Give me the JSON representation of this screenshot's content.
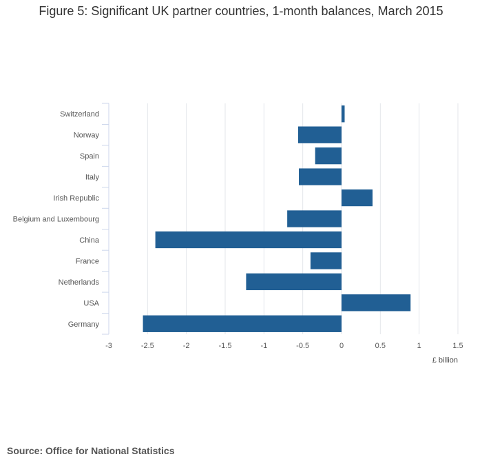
{
  "chart_data": {
    "type": "bar",
    "orientation": "horizontal",
    "title": "Figure 5: Significant UK partner countries, 1-month balances, March 2015",
    "xlabel": "£ billion",
    "ylabel": "",
    "categories": [
      "Switzerland",
      "Norway",
      "Spain",
      "Italy",
      "Irish Republic",
      "Belgium and Luxembourg",
      "China",
      "France",
      "Netherlands",
      "USA",
      "Germany"
    ],
    "values": [
      0.04,
      -0.56,
      -0.34,
      -0.55,
      0.4,
      -0.7,
      -2.4,
      -0.4,
      -1.23,
      0.89,
      -2.56
    ],
    "xlim": [
      -3,
      1.5
    ],
    "xticks": [
      -3,
      -2.5,
      -2,
      -1.5,
      -1,
      -0.5,
      0,
      0.5,
      1,
      1.5
    ],
    "grid": true,
    "bar_color": "#215f94"
  },
  "source": "Source: Office for National Statistics"
}
